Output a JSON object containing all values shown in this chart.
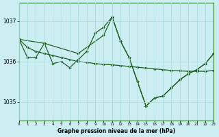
{
  "background_color": "#cceef2",
  "grid_color": "#aadddd",
  "line_color": "#1a5e1a",
  "series": [
    {
      "x": [
        0,
        1,
        2,
        3,
        4,
        5,
        6,
        7,
        8,
        9,
        10,
        11,
        12,
        13,
        14,
        15,
        16,
        17,
        18,
        19,
        20,
        21,
        22,
        23
      ],
      "y": [
        1036.55,
        1036.1,
        1036.1,
        1036.45,
        1035.95,
        1036.0,
        1035.85,
        1036.05,
        1036.25,
        1036.7,
        1036.85,
        1037.1,
        1036.5,
        1036.1,
        1035.5,
        1034.9,
        1035.1,
        1035.15,
        1035.35,
        1035.55,
        1035.7,
        1035.8,
        1035.95,
        1036.2
      ]
    },
    {
      "x": [
        0,
        1,
        2,
        3,
        4,
        5,
        6,
        7,
        8,
        9,
        10,
        11,
        12,
        13,
        14,
        15,
        16,
        17,
        18,
        19,
        20,
        21,
        22,
        23
      ],
      "y": [
        1036.55,
        1036.35,
        1036.25,
        1036.2,
        1036.15,
        1036.1,
        1036.05,
        1036.0,
        1035.98,
        1035.95,
        1035.93,
        1035.92,
        1035.9,
        1035.88,
        1035.86,
        1035.84,
        1035.82,
        1035.8,
        1035.78,
        1035.77,
        1035.76,
        1035.76,
        1035.76,
        1035.78
      ]
    },
    {
      "x": [
        0,
        3,
        7,
        10,
        11,
        12,
        13,
        14,
        15,
        16,
        17,
        18,
        19,
        20,
        21,
        22,
        23
      ],
      "y": [
        1036.55,
        1036.45,
        1036.2,
        1036.65,
        1037.1,
        1036.5,
        1036.1,
        1035.5,
        1034.9,
        1035.1,
        1035.15,
        1035.35,
        1035.55,
        1035.7,
        1035.8,
        1035.95,
        1036.2
      ]
    }
  ],
  "yticks": [
    1035,
    1036,
    1037
  ],
  "xticks": [
    0,
    1,
    2,
    3,
    4,
    5,
    6,
    7,
    8,
    9,
    10,
    11,
    12,
    13,
    14,
    15,
    16,
    17,
    18,
    19,
    20,
    21,
    22,
    23
  ],
  "ylim": [
    1034.55,
    1037.45
  ],
  "xlim": [
    0,
    23
  ],
  "xlabel": "Graphe pression niveau de la mer (hPa)"
}
